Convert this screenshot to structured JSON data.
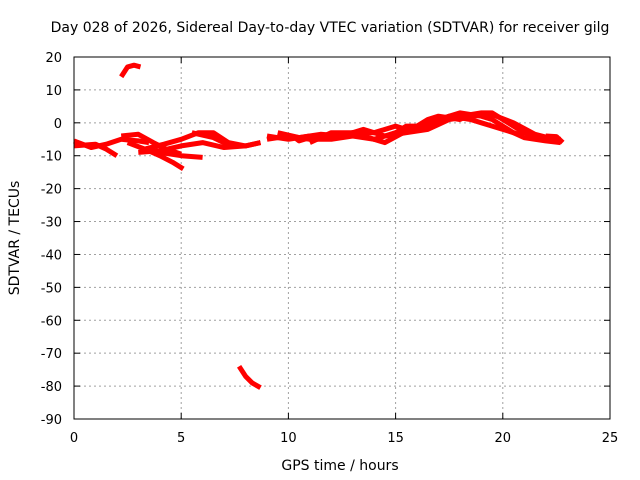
{
  "chart_data": {
    "type": "scatter",
    "title": "Day 028 of 2026, Sidereal Day-to-day VTEC variation (SDTVAR) for receiver gilg",
    "xlabel": "GPS time / hours",
    "ylabel": "SDTVAR / TECUs",
    "xlim": [
      0,
      25
    ],
    "ylim": [
      -90,
      20
    ],
    "xticks": [
      0,
      5,
      10,
      15,
      20,
      25
    ],
    "yticks": [
      -90,
      -80,
      -70,
      -60,
      -50,
      -40,
      -30,
      -20,
      -10,
      0,
      10,
      20
    ],
    "grid": true,
    "series": [
      {
        "name": "sdtvar",
        "color": "#ff0000",
        "segments": [
          [
            [
              0,
              -5.5
            ],
            [
              0.8,
              -7.5
            ],
            [
              1.5,
              -6.5
            ],
            [
              2.2,
              -5
            ],
            [
              3,
              -5.5
            ],
            [
              3.5,
              -6
            ]
          ],
          [
            [
              0,
              -7
            ],
            [
              1,
              -6.5
            ],
            [
              1.5,
              -8
            ],
            [
              2,
              -10
            ]
          ],
          [
            [
              2.2,
              -4
            ],
            [
              3,
              -3.5
            ],
            [
              3.7,
              -6
            ],
            [
              4.3,
              -8
            ],
            [
              5,
              -9.5
            ]
          ],
          [
            [
              2.5,
              -6
            ],
            [
              3.3,
              -8
            ],
            [
              4,
              -10
            ],
            [
              4.6,
              -12
            ],
            [
              5.1,
              -14
            ]
          ],
          [
            [
              3.3,
              -8
            ],
            [
              4.2,
              -6.5
            ],
            [
              5,
              -5
            ],
            [
              5.8,
              -3
            ],
            [
              6.5,
              -3
            ],
            [
              7.2,
              -6
            ],
            [
              8,
              -7
            ],
            [
              8.7,
              -6
            ]
          ],
          [
            [
              3,
              -9
            ],
            [
              4,
              -8.5
            ],
            [
              5,
              -7
            ],
            [
              6,
              -6
            ],
            [
              7,
              -7.5
            ],
            [
              8,
              -7
            ],
            [
              8.7,
              -6
            ]
          ],
          [
            [
              4,
              -9
            ],
            [
              5,
              -10
            ],
            [
              6,
              -10.5
            ]
          ],
          [
            [
              5.5,
              -3
            ],
            [
              6.5,
              -4.5
            ],
            [
              7.3,
              -7
            ]
          ],
          [
            [
              9,
              -4
            ],
            [
              10,
              -5
            ],
            [
              11,
              -4
            ],
            [
              12,
              -4
            ],
            [
              13,
              -3
            ],
            [
              14,
              -3
            ],
            [
              15,
              -1
            ],
            [
              15.5,
              -2
            ],
            [
              16,
              -1
            ],
            [
              16.5,
              1
            ],
            [
              17,
              2
            ],
            [
              18,
              1
            ],
            [
              18.5,
              2.5
            ],
            [
              19,
              3
            ],
            [
              19.5,
              3
            ],
            [
              20,
              1
            ],
            [
              20.5,
              -1
            ],
            [
              21,
              -3
            ],
            [
              22,
              -4.5
            ],
            [
              22.7,
              -5
            ]
          ],
          [
            [
              9,
              -5
            ],
            [
              10,
              -4
            ],
            [
              11,
              -5
            ],
            [
              12,
              -5
            ],
            [
              13,
              -4
            ],
            [
              14,
              -5
            ],
            [
              15,
              -3
            ],
            [
              15.5,
              -1
            ],
            [
              16,
              -1
            ],
            [
              17,
              1
            ],
            [
              18,
              3
            ],
            [
              19,
              2
            ],
            [
              19.5,
              1
            ],
            [
              20,
              -1
            ],
            [
              20.5,
              -3
            ],
            [
              21,
              -4.5
            ],
            [
              22,
              -5.5
            ],
            [
              22.7,
              -6
            ]
          ],
          [
            [
              9.5,
              -3
            ],
            [
              10.5,
              -4.5
            ],
            [
              11.5,
              -3.5
            ],
            [
              12.5,
              -4
            ],
            [
              13.5,
              -2
            ],
            [
              14.5,
              -4
            ],
            [
              15.5,
              -3
            ],
            [
              16.5,
              -2
            ],
            [
              17.5,
              1
            ],
            [
              18.5,
              2
            ],
            [
              19.5,
              2.5
            ],
            [
              20.5,
              0
            ],
            [
              21.5,
              -3.5
            ],
            [
              22.7,
              -5.5
            ]
          ],
          [
            [
              11,
              -6
            ],
            [
              12,
              -3
            ],
            [
              13,
              -3
            ],
            [
              14,
              -5
            ],
            [
              14.5,
              -6
            ],
            [
              15.5,
              -2.5
            ],
            [
              16.5,
              -1
            ],
            [
              17.5,
              2
            ],
            [
              18.5,
              1
            ],
            [
              19,
              0
            ],
            [
              20,
              -2
            ],
            [
              21,
              -4
            ]
          ],
          [
            [
              10.2,
              -4
            ],
            [
              10.5,
              -5.5
            ],
            [
              11,
              -4.5
            ]
          ],
          [
            [
              22,
              -4
            ],
            [
              22.5,
              -4.2
            ],
            [
              22.8,
              -6
            ]
          ],
          [
            [
              2.2,
              14
            ],
            [
              2.5,
              17
            ],
            [
              2.8,
              17.5
            ],
            [
              3.1,
              17
            ]
          ],
          [
            [
              7.7,
              -74
            ],
            [
              8,
              -77
            ],
            [
              8.3,
              -79
            ],
            [
              8.7,
              -80.5
            ]
          ]
        ]
      }
    ]
  }
}
